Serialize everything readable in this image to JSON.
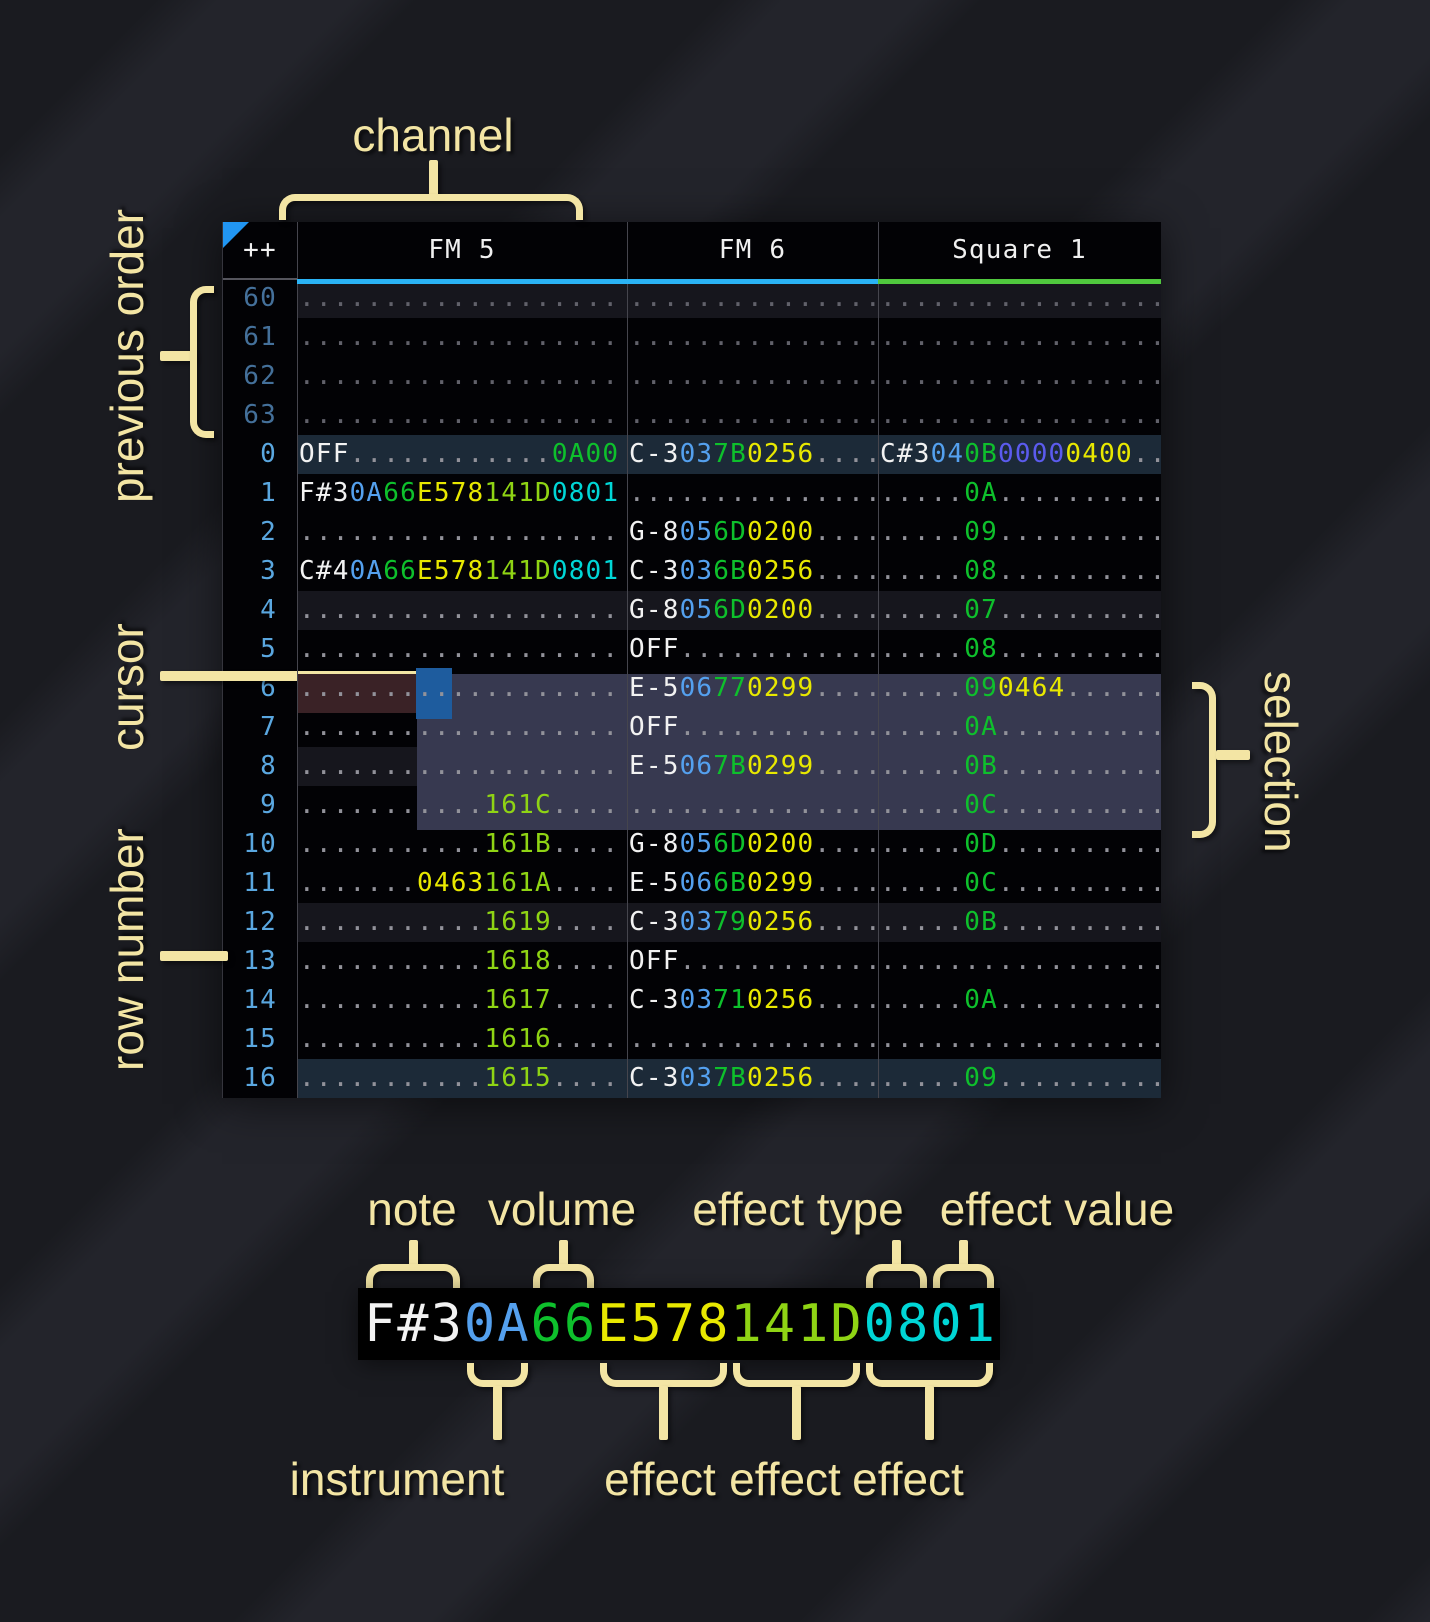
{
  "colors": {
    "background": "#1a1b20",
    "background_stripe": "#23242b",
    "table_bg": "#020205",
    "row_highlight_every4": "#16161d",
    "row_highlight_every16": "#1c2a38",
    "selection": "#373950",
    "cursor": "#1e5c9e",
    "cursor_row_note_field": "#3a2226",
    "divider": "#45454d",
    "annotation": "#f3e5a4",
    "order_triangle": "#2196f3",
    "note": "#f2f2f2",
    "instrument": "#54a0ee",
    "volume": "#0ec02c",
    "effect_yellow": "#e8e800",
    "effect_lime": "#8fd414",
    "effect_cyan": "#00d6d6",
    "effect_indigo": "#5b5bee",
    "dots": "#92929a",
    "dots_dim": "#61616a",
    "row_number": "#5aa7e0",
    "row_number_dim": "#44709a",
    "underline_fm": "#2ab3f5",
    "underline_square": "#50c83e"
  },
  "annotations": {
    "channel": "channel",
    "previous_order": "previous order",
    "cursor": "cursor",
    "row_number": "row number",
    "selection": "selection"
  },
  "legend": {
    "top_labels": [
      "note",
      "volume",
      "effect type",
      "effect value"
    ],
    "bottom_labels": [
      "instrument",
      "effect",
      "effect",
      "effect"
    ],
    "cell": [
      [
        "F#3",
        "n"
      ],
      [
        "0A",
        "i"
      ],
      [
        "66",
        "v"
      ],
      [
        "E5",
        "y"
      ],
      [
        "78",
        "y"
      ],
      [
        "14",
        "g"
      ],
      [
        "1D",
        "g"
      ],
      [
        "08",
        "c"
      ],
      [
        "01",
        "c"
      ]
    ]
  },
  "tracker": {
    "corner": "++",
    "channels": [
      {
        "name": "FM 5",
        "underline": "#2ab3f5"
      },
      {
        "name": "FM 6",
        "underline": "#2ab3f5"
      },
      {
        "name": "Square 1",
        "underline": "#50c83e"
      }
    ],
    "rows": [
      {
        "num": "60",
        "dim": 1,
        "hl": "h4",
        "c": [
          [
            [
              "...................",
              "e"
            ]
          ],
          [
            [
              "...............",
              "e"
            ]
          ],
          [
            [
              "...................",
              "e"
            ]
          ]
        ]
      },
      {
        "num": "61",
        "dim": 1,
        "hl": "",
        "c": [
          [
            [
              "...................",
              "e"
            ]
          ],
          [
            [
              "...............",
              "e"
            ]
          ],
          [
            [
              "...................",
              "e"
            ]
          ]
        ]
      },
      {
        "num": "62",
        "dim": 1,
        "hl": "",
        "c": [
          [
            [
              "...................",
              "e"
            ]
          ],
          [
            [
              "...............",
              "e"
            ]
          ],
          [
            [
              "...................",
              "e"
            ]
          ]
        ]
      },
      {
        "num": "63",
        "dim": 1,
        "hl": "",
        "c": [
          [
            [
              "...................",
              "e"
            ]
          ],
          [
            [
              "...............",
              "e"
            ]
          ],
          [
            [
              "...................",
              "e"
            ]
          ]
        ]
      },
      {
        "num": "0",
        "dim": 0,
        "hl": "h16",
        "c": [
          [
            [
              "OFF",
              "n"
            ],
            [
              "............",
              "d"
            ],
            [
              "0A00",
              "v"
            ]
          ],
          [
            [
              "C-3",
              "n"
            ],
            [
              "03",
              "i"
            ],
            [
              "7B",
              "v"
            ],
            [
              "0256",
              "y"
            ],
            [
              "....",
              "d"
            ]
          ],
          [
            [
              "C#3",
              "n"
            ],
            [
              "04",
              "i"
            ],
            [
              "0B",
              "v"
            ],
            [
              "0000",
              "p"
            ],
            [
              "0400",
              "y"
            ],
            [
              "....",
              "d"
            ]
          ]
        ]
      },
      {
        "num": "1",
        "dim": 0,
        "hl": "",
        "c": [
          [
            [
              "F#3",
              "n"
            ],
            [
              "0A",
              "i"
            ],
            [
              "66",
              "v"
            ],
            [
              "E578",
              "y"
            ],
            [
              "141D",
              "g"
            ],
            [
              "0801",
              "c"
            ]
          ],
          [
            [
              "...............",
              "d"
            ]
          ],
          [
            [
              ".....",
              "d"
            ],
            [
              "0A",
              "v"
            ],
            [
              "............",
              "d"
            ]
          ]
        ]
      },
      {
        "num": "2",
        "dim": 0,
        "hl": "",
        "c": [
          [
            [
              "...................",
              "d"
            ]
          ],
          [
            [
              "G-8",
              "n"
            ],
            [
              "05",
              "i"
            ],
            [
              "6D",
              "v"
            ],
            [
              "0200",
              "y"
            ],
            [
              "....",
              "d"
            ]
          ],
          [
            [
              ".....",
              "d"
            ],
            [
              "09",
              "v"
            ],
            [
              "............",
              "d"
            ]
          ]
        ]
      },
      {
        "num": "3",
        "dim": 0,
        "hl": "",
        "c": [
          [
            [
              "C#4",
              "n"
            ],
            [
              "0A",
              "i"
            ],
            [
              "66",
              "v"
            ],
            [
              "E578",
              "y"
            ],
            [
              "141D",
              "g"
            ],
            [
              "0801",
              "c"
            ]
          ],
          [
            [
              "C-3",
              "n"
            ],
            [
              "03",
              "i"
            ],
            [
              "6B",
              "v"
            ],
            [
              "0256",
              "y"
            ],
            [
              "....",
              "d"
            ]
          ],
          [
            [
              ".....",
              "d"
            ],
            [
              "08",
              "v"
            ],
            [
              "............",
              "d"
            ]
          ]
        ]
      },
      {
        "num": "4",
        "dim": 0,
        "hl": "h4",
        "c": [
          [
            [
              "...................",
              "d"
            ]
          ],
          [
            [
              "G-8",
              "n"
            ],
            [
              "05",
              "i"
            ],
            [
              "6D",
              "v"
            ],
            [
              "0200",
              "y"
            ],
            [
              "....",
              "d"
            ]
          ],
          [
            [
              ".....",
              "d"
            ],
            [
              "07",
              "v"
            ],
            [
              "............",
              "d"
            ]
          ]
        ]
      },
      {
        "num": "5",
        "dim": 0,
        "hl": "",
        "c": [
          [
            [
              "...................",
              "d"
            ]
          ],
          [
            [
              "OFF",
              "n"
            ],
            [
              "............",
              "d"
            ]
          ],
          [
            [
              ".....",
              "d"
            ],
            [
              "08",
              "v"
            ],
            [
              "............",
              "d"
            ]
          ]
        ]
      },
      {
        "num": "6",
        "dim": 0,
        "hl": "",
        "c": [
          [
            [
              "...................",
              "d"
            ]
          ],
          [
            [
              "E-5",
              "n"
            ],
            [
              "06",
              "i"
            ],
            [
              "77",
              "v"
            ],
            [
              "0299",
              "y"
            ],
            [
              "....",
              "d"
            ]
          ],
          [
            [
              ".....",
              "d"
            ],
            [
              "09",
              "v"
            ],
            [
              "0464",
              "y"
            ],
            [
              "........",
              "d"
            ]
          ]
        ]
      },
      {
        "num": "7",
        "dim": 0,
        "hl": "",
        "c": [
          [
            [
              "...................",
              "d"
            ]
          ],
          [
            [
              "OFF",
              "n"
            ],
            [
              "............",
              "d"
            ]
          ],
          [
            [
              ".....",
              "d"
            ],
            [
              "0A",
              "v"
            ],
            [
              "............",
              "d"
            ]
          ]
        ]
      },
      {
        "num": "8",
        "dim": 0,
        "hl": "h4",
        "c": [
          [
            [
              "...................",
              "d"
            ]
          ],
          [
            [
              "E-5",
              "n"
            ],
            [
              "06",
              "i"
            ],
            [
              "7B",
              "v"
            ],
            [
              "0299",
              "y"
            ],
            [
              "....",
              "d"
            ]
          ],
          [
            [
              ".....",
              "d"
            ],
            [
              "0B",
              "v"
            ],
            [
              "............",
              "d"
            ]
          ]
        ]
      },
      {
        "num": "9",
        "dim": 0,
        "hl": "",
        "c": [
          [
            [
              "...........",
              "d"
            ],
            [
              "161C",
              "g"
            ],
            [
              "....",
              "d"
            ]
          ],
          [
            [
              "...............",
              "d"
            ]
          ],
          [
            [
              ".....",
              "d"
            ],
            [
              "0C",
              "v"
            ],
            [
              "............",
              "d"
            ]
          ]
        ]
      },
      {
        "num": "10",
        "dim": 0,
        "hl": "",
        "c": [
          [
            [
              "...........",
              "d"
            ],
            [
              "161B",
              "g"
            ],
            [
              "....",
              "d"
            ]
          ],
          [
            [
              "G-8",
              "n"
            ],
            [
              "05",
              "i"
            ],
            [
              "6D",
              "v"
            ],
            [
              "0200",
              "y"
            ],
            [
              "....",
              "d"
            ]
          ],
          [
            [
              ".....",
              "d"
            ],
            [
              "0D",
              "v"
            ],
            [
              "............",
              "d"
            ]
          ]
        ]
      },
      {
        "num": "11",
        "dim": 0,
        "hl": "",
        "c": [
          [
            [
              ".......",
              "d"
            ],
            [
              "0463",
              "y"
            ],
            [
              "161A",
              "g"
            ],
            [
              "....",
              "d"
            ]
          ],
          [
            [
              "E-5",
              "n"
            ],
            [
              "06",
              "i"
            ],
            [
              "6B",
              "v"
            ],
            [
              "0299",
              "y"
            ],
            [
              "....",
              "d"
            ]
          ],
          [
            [
              ".....",
              "d"
            ],
            [
              "0C",
              "v"
            ],
            [
              "............",
              "d"
            ]
          ]
        ]
      },
      {
        "num": "12",
        "dim": 0,
        "hl": "h4",
        "c": [
          [
            [
              "...........",
              "d"
            ],
            [
              "1619",
              "g"
            ],
            [
              "....",
              "d"
            ]
          ],
          [
            [
              "C-3",
              "n"
            ],
            [
              "03",
              "i"
            ],
            [
              "79",
              "v"
            ],
            [
              "0256",
              "y"
            ],
            [
              "....",
              "d"
            ]
          ],
          [
            [
              ".....",
              "d"
            ],
            [
              "0B",
              "v"
            ],
            [
              "............",
              "d"
            ]
          ]
        ]
      },
      {
        "num": "13",
        "dim": 0,
        "hl": "",
        "c": [
          [
            [
              "...........",
              "d"
            ],
            [
              "1618",
              "g"
            ],
            [
              "....",
              "d"
            ]
          ],
          [
            [
              "OFF",
              "n"
            ],
            [
              "............",
              "d"
            ]
          ],
          [
            [
              "...................",
              "d"
            ]
          ]
        ]
      },
      {
        "num": "14",
        "dim": 0,
        "hl": "",
        "c": [
          [
            [
              "...........",
              "d"
            ],
            [
              "1617",
              "g"
            ],
            [
              "....",
              "d"
            ]
          ],
          [
            [
              "C-3",
              "n"
            ],
            [
              "03",
              "i"
            ],
            [
              "71",
              "v"
            ],
            [
              "0256",
              "y"
            ],
            [
              "....",
              "d"
            ]
          ],
          [
            [
              ".....",
              "d"
            ],
            [
              "0A",
              "v"
            ],
            [
              "............",
              "d"
            ]
          ]
        ]
      },
      {
        "num": "15",
        "dim": 0,
        "hl": "",
        "c": [
          [
            [
              "...........",
              "d"
            ],
            [
              "1616",
              "g"
            ],
            [
              "....",
              "d"
            ]
          ],
          [
            [
              "...............",
              "d"
            ]
          ],
          [
            [
              "...................",
              "d"
            ]
          ]
        ]
      },
      {
        "num": "16",
        "dim": 0,
        "hl": "h16",
        "c": [
          [
            [
              "...........",
              "d"
            ],
            [
              "1615",
              "g"
            ],
            [
              "....",
              "d"
            ]
          ],
          [
            [
              "C-3",
              "n"
            ],
            [
              "03",
              "i"
            ],
            [
              "7B",
              "v"
            ],
            [
              "0256",
              "y"
            ],
            [
              "....",
              "d"
            ]
          ],
          [
            [
              ".....",
              "d"
            ],
            [
              "09",
              "v"
            ],
            [
              "............",
              "d"
            ]
          ]
        ]
      }
    ]
  }
}
